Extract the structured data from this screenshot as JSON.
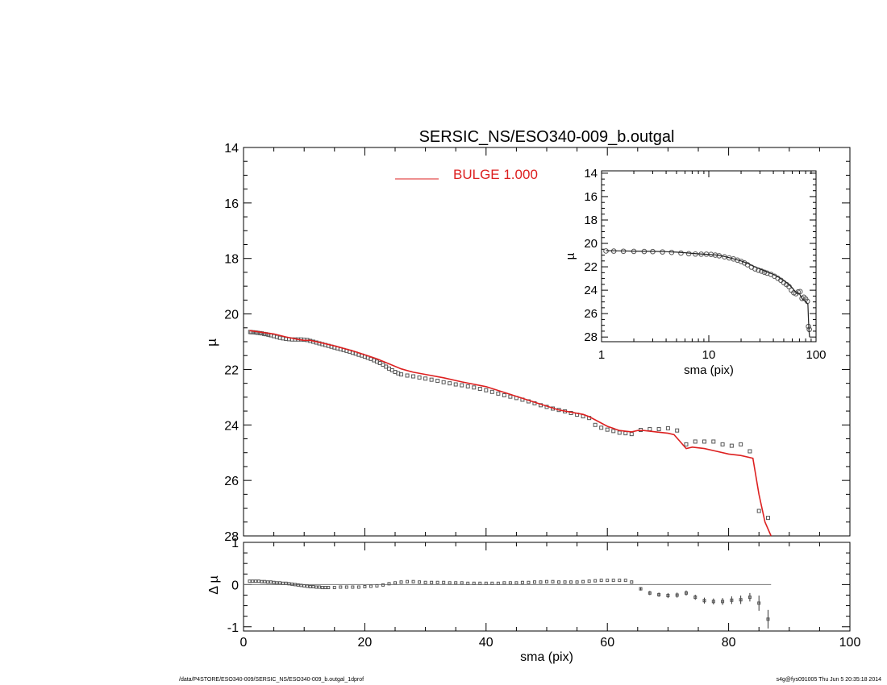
{
  "chart_data": [
    {
      "id": "main",
      "type": "scatter",
      "title": "SERSIC_NS/ESO340-009_b.outgal",
      "xlabel": "",
      "ylabel": "µ",
      "xlim": [
        0,
        100
      ],
      "ylim": [
        28,
        14
      ],
      "y_inverted": true,
      "y_ticks": [
        14,
        16,
        18,
        20,
        22,
        24,
        26,
        28
      ],
      "legend": {
        "label": "BULGE  1.000",
        "color": "#dd2020",
        "position": "top-center"
      },
      "series": [
        {
          "kind": "points",
          "marker": "open-square",
          "color": "#555555",
          "x": [
            1.1,
            1.3,
            1.6,
            2.0,
            2.3,
            2.7,
            3.0,
            3.4,
            3.7,
            4.1,
            4.5,
            5.0,
            5.5,
            6.0,
            6.5,
            7.0,
            7.5,
            8.0,
            8.5,
            9.0,
            9.5,
            10.0,
            10.5,
            11.0,
            11.5,
            12.0,
            12.5,
            13.0,
            13.5,
            14.0,
            14.5,
            15.0,
            15.5,
            16.0,
            16.5,
            17.0,
            17.5,
            18.0,
            18.5,
            19.0,
            19.5,
            20.0,
            20.5,
            21.0,
            21.5,
            22.0,
            22.5,
            23.0,
            23.5,
            24.0,
            24.5,
            25.0,
            25.5,
            26.0,
            27.0,
            28.0,
            29.0,
            30.0,
            31.0,
            32.0,
            33.0,
            34.0,
            35.0,
            36.0,
            37.0,
            38.0,
            39.0,
            40.0,
            41.0,
            42.0,
            43.0,
            44.0,
            45.0,
            46.0,
            47.0,
            48.0,
            49.0,
            50.0,
            51.0,
            52.0,
            53.0,
            54.0,
            55.0,
            56.0,
            57.0,
            58.0,
            59.0,
            60.0,
            61.0,
            62.0,
            63.0,
            64.0,
            65.5,
            67.0,
            68.5,
            70.0,
            71.5,
            73.0,
            74.5,
            76.0,
            77.5,
            79.0,
            80.5,
            82.0,
            83.5,
            85.0,
            86.5
          ],
          "y": [
            20.65,
            20.66,
            20.66,
            20.67,
            20.68,
            20.69,
            20.7,
            20.72,
            20.73,
            20.75,
            20.77,
            20.8,
            20.83,
            20.86,
            20.88,
            20.9,
            20.91,
            20.92,
            20.92,
            20.92,
            20.92,
            20.93,
            20.94,
            20.97,
            21.0,
            21.03,
            21.06,
            21.09,
            21.12,
            21.15,
            21.18,
            21.21,
            21.24,
            21.27,
            21.3,
            21.33,
            21.36,
            21.4,
            21.43,
            21.47,
            21.5,
            21.54,
            21.58,
            21.62,
            21.67,
            21.72,
            21.77,
            21.83,
            21.9,
            21.97,
            22.03,
            22.09,
            22.14,
            22.18,
            22.22,
            22.25,
            22.29,
            22.33,
            22.37,
            22.41,
            22.46,
            22.5,
            22.54,
            22.57,
            22.61,
            22.65,
            22.7,
            22.75,
            22.81,
            22.87,
            22.93,
            22.98,
            23.03,
            23.09,
            23.15,
            23.22,
            23.29,
            23.35,
            23.41,
            23.46,
            23.51,
            23.57,
            23.63,
            23.69,
            23.75,
            24.0,
            24.1,
            24.17,
            24.22,
            24.28,
            24.3,
            24.33,
            24.18,
            24.15,
            24.15,
            24.12,
            24.2,
            24.7,
            24.6,
            24.6,
            24.6,
            24.7,
            24.75,
            24.7,
            24.95,
            27.1,
            27.35
          ]
        },
        {
          "kind": "line",
          "name": "BULGE  1.000",
          "color": "#dd2020",
          "x": [
            1,
            3,
            5,
            7,
            9,
            10,
            11,
            13,
            15,
            18,
            20,
            22,
            24,
            26,
            28,
            30,
            33,
            36,
            40,
            44,
            48,
            52,
            56,
            57,
            60,
            62,
            64,
            65,
            66,
            68,
            70,
            71,
            72,
            73,
            74,
            76,
            78,
            80,
            82,
            84,
            85,
            86,
            87
          ],
          "y": [
            20.6,
            20.66,
            20.72,
            20.83,
            20.92,
            20.95,
            20.95,
            21.05,
            21.15,
            21.33,
            21.47,
            21.62,
            21.8,
            21.98,
            22.1,
            22.18,
            22.3,
            22.45,
            22.62,
            22.9,
            23.18,
            23.46,
            23.62,
            23.7,
            24.05,
            24.2,
            24.25,
            24.2,
            24.2,
            24.25,
            24.3,
            24.35,
            24.6,
            24.85,
            24.8,
            24.85,
            24.95,
            25.05,
            25.1,
            25.2,
            26.5,
            27.5,
            28.0
          ]
        }
      ]
    },
    {
      "id": "residual",
      "type": "scatter",
      "title": "",
      "xlabel": "sma (pix)",
      "ylabel": "Δ µ",
      "xlim": [
        0,
        100
      ],
      "ylim": [
        -1.1,
        1.0
      ],
      "x_ticks": [
        0,
        20,
        40,
        60,
        80,
        100
      ],
      "y_ticks": [
        -1,
        0,
        1
      ],
      "zero_line": {
        "x": [
          0,
          87
        ],
        "y": 0
      },
      "series": [
        {
          "kind": "points",
          "marker": "open-square",
          "color": "#555555",
          "x": [
            1,
            1.5,
            2,
            2.5,
            3,
            3.5,
            4,
            4.5,
            5,
            5.5,
            6,
            6.5,
            7,
            7.5,
            8,
            8.5,
            9,
            9.5,
            10,
            10.5,
            11,
            11.5,
            12,
            12.5,
            13,
            13.5,
            14,
            15,
            16,
            17,
            18,
            19,
            20,
            21,
            22,
            23,
            24,
            25,
            26,
            27,
            28,
            29,
            30,
            31,
            32,
            33,
            34,
            35,
            36,
            37,
            38,
            39,
            40,
            41,
            42,
            43,
            44,
            45,
            46,
            47,
            48,
            49,
            50,
            51,
            52,
            53,
            54,
            55,
            56,
            57,
            58,
            59,
            60,
            61,
            62,
            63,
            64,
            65.5,
            67,
            68.5,
            70,
            71.5,
            73,
            74.5,
            76,
            77.5,
            79,
            80.5,
            82,
            83.5,
            85,
            86.5
          ],
          "y": [
            0.08,
            0.08,
            0.08,
            0.08,
            0.07,
            0.07,
            0.06,
            0.06,
            0.05,
            0.04,
            0.04,
            0.03,
            0.03,
            0.02,
            0.01,
            0.0,
            -0.01,
            -0.02,
            -0.03,
            -0.04,
            -0.05,
            -0.05,
            -0.06,
            -0.06,
            -0.07,
            -0.07,
            -0.07,
            -0.07,
            -0.06,
            -0.06,
            -0.06,
            -0.06,
            -0.05,
            -0.04,
            -0.03,
            -0.01,
            0.02,
            0.04,
            0.06,
            0.07,
            0.07,
            0.06,
            0.05,
            0.05,
            0.05,
            0.05,
            0.04,
            0.04,
            0.04,
            0.03,
            0.03,
            0.03,
            0.03,
            0.03,
            0.03,
            0.04,
            0.04,
            0.04,
            0.05,
            0.05,
            0.06,
            0.06,
            0.07,
            0.07,
            0.06,
            0.06,
            0.06,
            0.06,
            0.07,
            0.08,
            0.09,
            0.1,
            0.1,
            0.1,
            0.1,
            0.1,
            0.06,
            -0.1,
            -0.2,
            -0.24,
            -0.26,
            -0.25,
            -0.2,
            -0.3,
            -0.38,
            -0.4,
            -0.4,
            -0.37,
            -0.36,
            -0.3,
            -0.44,
            -0.82
          ],
          "err": [
            0,
            0,
            0,
            0,
            0,
            0,
            0,
            0,
            0,
            0,
            0,
            0,
            0,
            0,
            0,
            0,
            0,
            0,
            0,
            0,
            0,
            0,
            0,
            0,
            0,
            0,
            0,
            0,
            0,
            0,
            0,
            0,
            0,
            0,
            0,
            0,
            0,
            0,
            0,
            0,
            0,
            0,
            0,
            0,
            0,
            0,
            0,
            0,
            0,
            0,
            0,
            0,
            0,
            0,
            0,
            0,
            0,
            0,
            0,
            0,
            0,
            0,
            0,
            0,
            0,
            0,
            0,
            0,
            0,
            0,
            0,
            0,
            0,
            0,
            0,
            0,
            0,
            0.04,
            0.05,
            0.05,
            0.06,
            0.06,
            0.06,
            0.06,
            0.07,
            0.07,
            0.08,
            0.09,
            0.1,
            0.1,
            0.18,
            0.22
          ]
        }
      ]
    },
    {
      "id": "inset",
      "type": "line",
      "title": "",
      "xlabel": "sma (pix)",
      "ylabel": "µ",
      "x_scale": "log",
      "xlim": [
        1,
        100
      ],
      "ylim": [
        28.4,
        13.8
      ],
      "y_inverted": true,
      "x_ticks": [
        1,
        10,
        100
      ],
      "y_ticks": [
        14,
        16,
        18,
        20,
        22,
        24,
        26,
        28
      ],
      "series": [
        {
          "kind": "points",
          "marker": "open-square",
          "color": "#555555",
          "x": [
            1.1,
            1.3,
            1.6,
            2.0,
            2.5,
            3.0,
            3.7,
            4.5,
            5.5,
            6.5,
            7.5,
            8.5,
            9.5,
            10.5,
            11.5,
            12.5,
            14,
            15.5,
            17,
            18.5,
            20,
            21.5,
            23,
            25,
            27,
            29,
            31,
            33,
            35,
            38,
            41,
            44,
            47,
            50,
            53,
            56,
            59,
            62,
            65,
            68,
            71,
            74,
            77,
            80,
            83,
            85,
            86.5
          ],
          "y": [
            20.65,
            20.66,
            20.67,
            20.68,
            20.69,
            20.7,
            20.73,
            20.77,
            20.83,
            20.88,
            20.91,
            20.92,
            20.92,
            20.94,
            21.0,
            21.06,
            21.15,
            21.24,
            21.33,
            21.43,
            21.54,
            21.67,
            21.83,
            22.03,
            22.18,
            22.29,
            22.37,
            22.46,
            22.54,
            22.65,
            22.81,
            22.98,
            23.15,
            23.35,
            23.51,
            23.69,
            24.0,
            24.22,
            24.3,
            24.15,
            24.12,
            24.7,
            24.6,
            24.75,
            24.95,
            27.1,
            27.35
          ]
        },
        {
          "kind": "line",
          "color": "#222222",
          "x": [
            1.1,
            1.5,
            2,
            3,
            4,
            5,
            6,
            7,
            8,
            9,
            10,
            12,
            14,
            16,
            18,
            20,
            23,
            26,
            30,
            35,
            40,
            45,
            50,
            55,
            60,
            65,
            70,
            75,
            80,
            84,
            85,
            86,
            87
          ],
          "y": [
            20.62,
            20.64,
            20.66,
            20.68,
            20.71,
            20.75,
            20.8,
            20.85,
            20.89,
            20.92,
            20.94,
            21.0,
            21.12,
            21.25,
            21.38,
            21.5,
            21.7,
            21.95,
            22.18,
            22.45,
            22.65,
            22.9,
            23.18,
            23.46,
            23.8,
            24.2,
            24.3,
            24.8,
            24.95,
            25.2,
            26.5,
            27.5,
            28.0
          ]
        }
      ]
    }
  ],
  "footer": {
    "left": "/data/P4STORE/ESO340-009/SERSIC_NS/ESO340-009_b.outgal_1dprof",
    "right": "s4g@fys091005  Thu Jun  5 20:35:18 2014"
  }
}
